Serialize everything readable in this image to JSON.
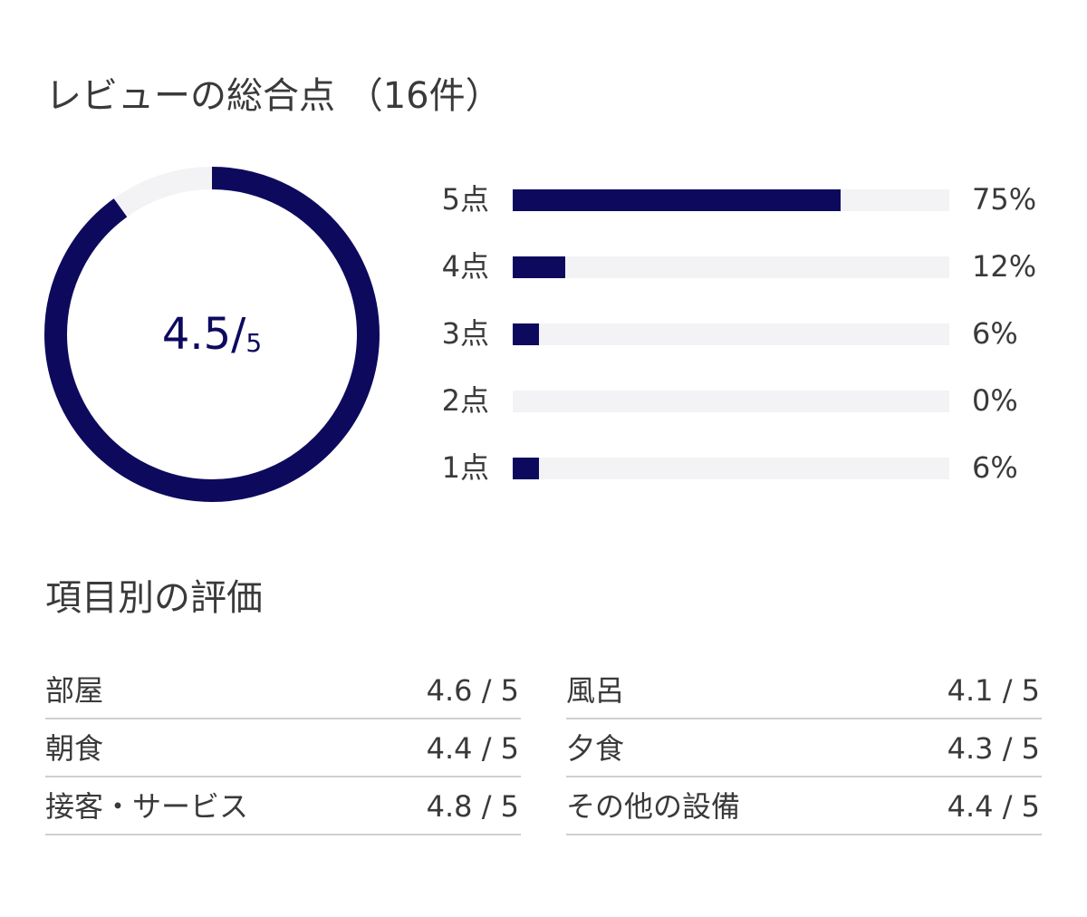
{
  "overall": {
    "title": "レビューの総合点 （16件）",
    "score": "4.5/",
    "max": "5",
    "score_value": 4.5,
    "max_value": 5
  },
  "distribution": [
    {
      "label": "5点",
      "percent_label": "75%",
      "percent": 75
    },
    {
      "label": "4点",
      "percent_label": "12%",
      "percent": 12
    },
    {
      "label": "3点",
      "percent_label": "6%",
      "percent": 6
    },
    {
      "label": "2点",
      "percent_label": "0%",
      "percent": 0
    },
    {
      "label": "1点",
      "percent_label": "6%",
      "percent": 6
    }
  ],
  "items": {
    "title": "項目別の評価",
    "left": [
      {
        "name": "部屋",
        "score": "4.6 / 5"
      },
      {
        "name": "朝食",
        "score": "4.4 / 5"
      },
      {
        "name": "接客・サービス",
        "score": "4.8 / 5"
      }
    ],
    "right": [
      {
        "name": "風呂",
        "score": "4.1 / 5"
      },
      {
        "name": "夕食",
        "score": "4.3 / 5"
      },
      {
        "name": "その他の設備",
        "score": "4.4 / 5"
      }
    ]
  },
  "colors": {
    "accent": "#0d0a5e",
    "track": "#f3f3f5",
    "divider": "#cfcfcf",
    "text": "#3a3a3a"
  }
}
